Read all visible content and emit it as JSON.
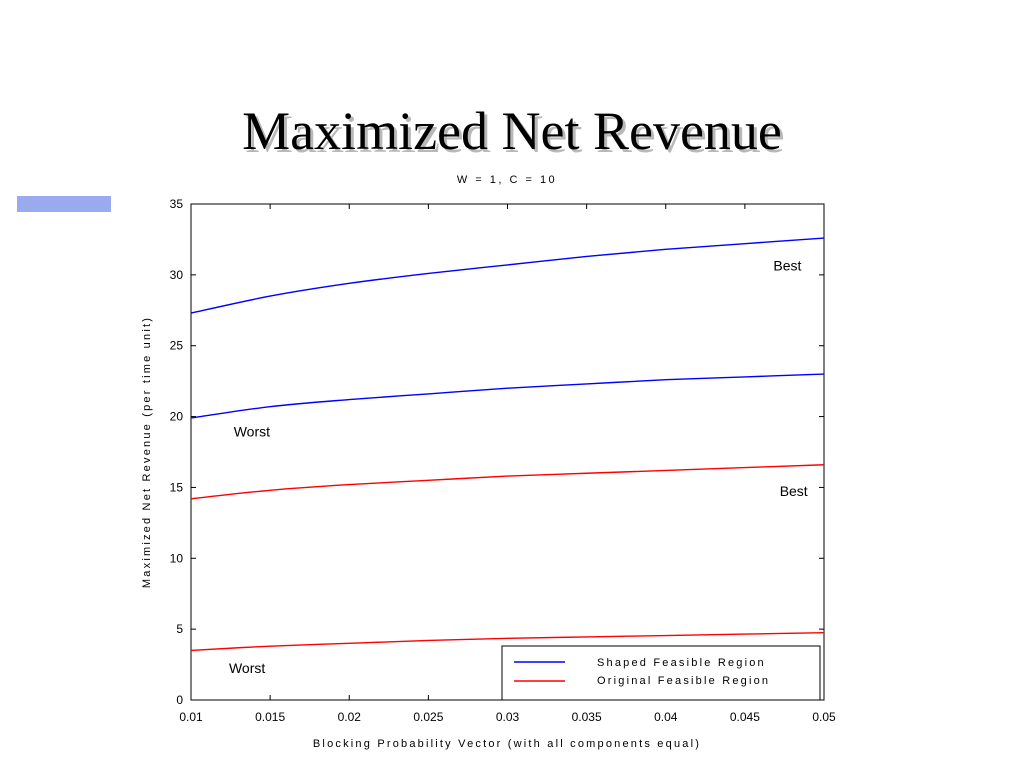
{
  "slide": {
    "title": "Maximized Net Revenue",
    "accent_color": "#99aaee"
  },
  "chart_data": {
    "type": "line",
    "title": "W = 1, C = 10",
    "xlabel": "Blocking Probability Vector (with all components equal)",
    "ylabel": "Maximized Net Revenue (per time unit)",
    "xlim": [
      0.01,
      0.05
    ],
    "ylim": [
      0,
      35
    ],
    "xticks": [
      0.01,
      0.015,
      0.02,
      0.025,
      0.03,
      0.035,
      0.04,
      0.045,
      0.05
    ],
    "xtick_labels": [
      "0.01",
      "0.015",
      "0.02",
      "0.025",
      "0.03",
      "0.035",
      "0.04",
      "0.045",
      "0.05"
    ],
    "yticks": [
      0,
      5,
      10,
      15,
      20,
      25,
      30,
      35
    ],
    "ytick_labels": [
      "0",
      "5",
      "10",
      "15",
      "20",
      "25",
      "30",
      "35"
    ],
    "grid": false,
    "legend_position": "bottom-right",
    "legend": [
      {
        "label": "Shaped Feasible Region",
        "color": "#0000ff"
      },
      {
        "label": "Original Feasible Region",
        "color": "#ff0000"
      }
    ],
    "series": [
      {
        "group": "Shaped Feasible Region",
        "case": "Best",
        "color": "#0000ff",
        "x": [
          0.01,
          0.015,
          0.02,
          0.025,
          0.03,
          0.035,
          0.04,
          0.045,
          0.05
        ],
        "y": [
          27.3,
          28.5,
          29.4,
          30.1,
          30.7,
          31.3,
          31.8,
          32.2,
          32.6
        ]
      },
      {
        "group": "Shaped Feasible Region",
        "case": "Worst",
        "color": "#0000ff",
        "x": [
          0.01,
          0.015,
          0.02,
          0.025,
          0.03,
          0.035,
          0.04,
          0.045,
          0.05
        ],
        "y": [
          19.9,
          20.7,
          21.2,
          21.6,
          22.0,
          22.3,
          22.6,
          22.8,
          23.0
        ]
      },
      {
        "group": "Original Feasible Region",
        "case": "Best",
        "color": "#ff0000",
        "x": [
          0.01,
          0.015,
          0.02,
          0.025,
          0.03,
          0.035,
          0.04,
          0.045,
          0.05
        ],
        "y": [
          14.2,
          14.8,
          15.2,
          15.5,
          15.8,
          16.0,
          16.2,
          16.4,
          16.6
        ]
      },
      {
        "group": "Original Feasible Region",
        "case": "Worst",
        "color": "#ff0000",
        "x": [
          0.01,
          0.015,
          0.02,
          0.025,
          0.03,
          0.035,
          0.04,
          0.045,
          0.05
        ],
        "y": [
          3.5,
          3.8,
          4.0,
          4.2,
          4.35,
          4.45,
          4.55,
          4.65,
          4.75
        ]
      }
    ],
    "annotations": [
      {
        "text": "Best",
        "x": 0.0468,
        "y": 30.3
      },
      {
        "text": "Worst",
        "x": 0.0127,
        "y": 18.6
      },
      {
        "text": "Best",
        "x": 0.0472,
        "y": 14.4
      },
      {
        "text": "Worst",
        "x": 0.0124,
        "y": 1.9
      }
    ]
  }
}
